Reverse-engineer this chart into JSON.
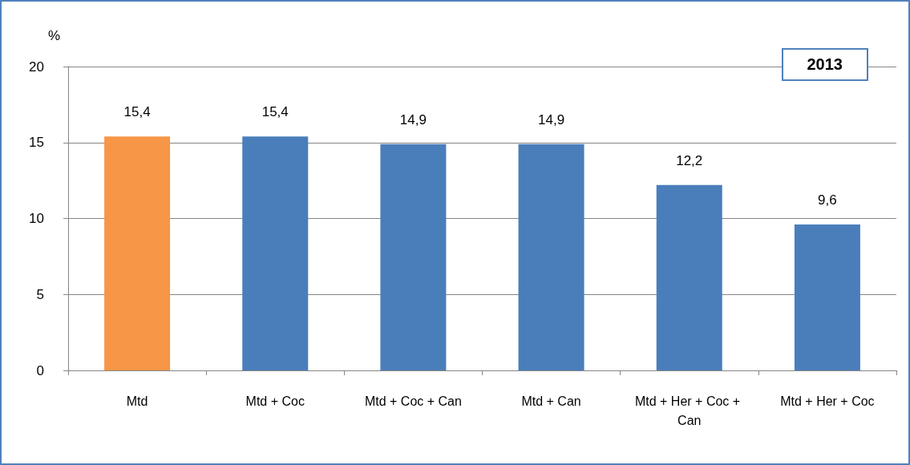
{
  "chart_data": {
    "type": "bar",
    "ylabel": "%",
    "categories": [
      "Mtd",
      "Mtd + Coc",
      "Mtd + Coc + Can",
      "Mtd + Can",
      "Mtd + Her + Coc + Can",
      "Mtd + Her + Coc"
    ],
    "values": [
      15.4,
      15.4,
      14.9,
      14.9,
      12.2,
      9.6
    ],
    "value_labels": [
      "15,4",
      "15,4",
      "14,9",
      "14,9",
      "12,2",
      "9,6"
    ],
    "colors": [
      "#f79646",
      "#4a7ebb",
      "#4a7ebb",
      "#4a7ebb",
      "#4a7ebb",
      "#4a7ebb"
    ],
    "ylim": [
      0,
      20
    ],
    "yticks": [
      0,
      5,
      10,
      15,
      20
    ],
    "grid": "y",
    "annotations": [
      "2013"
    ]
  }
}
